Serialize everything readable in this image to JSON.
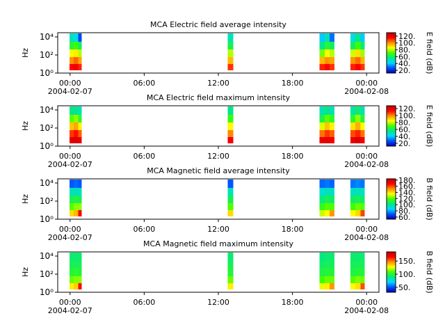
{
  "chart_data": [
    {
      "type": "heatmap",
      "title": "MCA  Electric field average intensity",
      "ylabel": "Hz",
      "yscale": "log",
      "ylim": [
        1,
        29000
      ],
      "yticks": [
        {
          "value": 1,
          "label": "10⁰"
        },
        {
          "value": 100,
          "label": "10²"
        },
        {
          "value": 10000,
          "label": "10⁴"
        }
      ],
      "xlim": [
        -1,
        25
      ],
      "xticks": [
        {
          "value": 0,
          "label": "00:00"
        },
        {
          "value": 6,
          "label": "06:00"
        },
        {
          "value": 12,
          "label": "12:00"
        },
        {
          "value": 18,
          "label": "18:00"
        },
        {
          "value": 24,
          "label": "00:00"
        }
      ],
      "date_labels": [
        "2004-02-07",
        "2004-02-08"
      ],
      "x_edges": [
        -0.05,
        0.3,
        0.65,
        0.95,
        12.75,
        13.2,
        20.2,
        20.6,
        21.0,
        21.4,
        22.7,
        23.1,
        23.5,
        23.85
      ],
      "y_edges": [
        2,
        10,
        60,
        400,
        3000,
        25000
      ],
      "z": [
        [
          115,
          118,
          112,
          null,
          110,
          null,
          112,
          115,
          110,
          null,
          112,
          116,
          110
        ],
        [
          100,
          105,
          98,
          null,
          95,
          null,
          95,
          100,
          98,
          null,
          100,
          104,
          96
        ],
        [
          85,
          88,
          80,
          null,
          80,
          null,
          75,
          85,
          80,
          null,
          82,
          90,
          78
        ],
        [
          65,
          70,
          60,
          null,
          62,
          null,
          55,
          65,
          60,
          null,
          60,
          70,
          58
        ],
        [
          50,
          45,
          25,
          null,
          50,
          null,
          40,
          50,
          30,
          null,
          45,
          55,
          40
        ]
      ],
      "colormap": [
        "#0000b0",
        "#0050ff",
        "#00d8ff",
        "#00e888",
        "#40ff00",
        "#ffff00",
        "#ff9000",
        "#ff0000",
        "#c00000"
      ],
      "colorbar": {
        "label": "E field (dB)",
        "lim": [
          12,
          130
        ],
        "ticks": [
          {
            "value": 20,
            "label": "20."
          },
          {
            "value": 40,
            "label": "40."
          },
          {
            "value": 60,
            "label": "60."
          },
          {
            "value": 80,
            "label": "80."
          },
          {
            "value": 100,
            "label": "100."
          },
          {
            "value": 120,
            "label": "120."
          }
        ]
      }
    },
    {
      "type": "heatmap",
      "title": "MCA  Electric field maximum intensity",
      "ylabel": "Hz",
      "yscale": "log",
      "ylim": [
        1,
        29000
      ],
      "yticks": [
        {
          "value": 1,
          "label": "10⁰"
        },
        {
          "value": 100,
          "label": "10²"
        },
        {
          "value": 10000,
          "label": "10⁴"
        }
      ],
      "xlim": [
        -1,
        25
      ],
      "xticks": [
        {
          "value": 0,
          "label": "00:00"
        },
        {
          "value": 6,
          "label": "06:00"
        },
        {
          "value": 12,
          "label": "12:00"
        },
        {
          "value": 18,
          "label": "18:00"
        },
        {
          "value": 24,
          "label": "00:00"
        }
      ],
      "date_labels": [
        "2004-02-07",
        "2004-02-08"
      ],
      "x_edges": [
        -0.05,
        0.3,
        0.65,
        0.95,
        12.75,
        13.2,
        20.2,
        20.6,
        21.0,
        21.4,
        22.7,
        23.1,
        23.5,
        23.85
      ],
      "y_edges": [
        2,
        10,
        60,
        400,
        3000,
        25000
      ],
      "z": [
        [
          120,
          122,
          118,
          null,
          115,
          null,
          118,
          120,
          116,
          null,
          118,
          122,
          116
        ],
        [
          108,
          112,
          104,
          null,
          100,
          null,
          102,
          108,
          104,
          null,
          106,
          110,
          102
        ],
        [
          92,
          96,
          86,
          null,
          85,
          null,
          82,
          92,
          86,
          null,
          88,
          95,
          84
        ],
        [
          72,
          76,
          66,
          null,
          68,
          null,
          62,
          72,
          66,
          null,
          66,
          76,
          64
        ],
        [
          55,
          55,
          50,
          null,
          55,
          null,
          50,
          55,
          50,
          null,
          52,
          58,
          50
        ]
      ],
      "colormap": [
        "#0000b0",
        "#0050ff",
        "#00d8ff",
        "#00e888",
        "#40ff00",
        "#ffff00",
        "#ff9000",
        "#ff0000",
        "#c00000"
      ],
      "colorbar": {
        "label": "E field (dB)",
        "lim": [
          12,
          128
        ],
        "ticks": [
          {
            "value": 20,
            "label": "20."
          },
          {
            "value": 40,
            "label": "40."
          },
          {
            "value": 60,
            "label": "60."
          },
          {
            "value": 80,
            "label": "80."
          },
          {
            "value": 100,
            "label": "100."
          },
          {
            "value": 120,
            "label": "120."
          }
        ]
      }
    },
    {
      "type": "heatmap",
      "title": "MCA  Magnetic field average intensity",
      "ylabel": "Hz",
      "yscale": "log",
      "ylim": [
        1,
        29000
      ],
      "yticks": [
        {
          "value": 1,
          "label": "10⁰"
        },
        {
          "value": 100,
          "label": "10²"
        },
        {
          "value": 10000,
          "label": "10⁴"
        }
      ],
      "xlim": [
        -1,
        25
      ],
      "xticks": [
        {
          "value": 0,
          "label": "00:00"
        },
        {
          "value": 6,
          "label": "06:00"
        },
        {
          "value": 12,
          "label": "12:00"
        },
        {
          "value": 18,
          "label": "18:00"
        },
        {
          "value": 24,
          "label": "00:00"
        }
      ],
      "date_labels": [
        "2004-02-07",
        "2004-02-08"
      ],
      "x_edges": [
        -0.05,
        0.3,
        0.65,
        0.95,
        12.75,
        13.2,
        20.2,
        20.6,
        21.0,
        21.4,
        22.7,
        23.1,
        23.5,
        23.85
      ],
      "y_edges": [
        2,
        10,
        60,
        400,
        3000,
        25000
      ],
      "z": [
        [
          140,
          145,
          170,
          null,
          140,
          null,
          130,
          135,
          150,
          null,
          135,
          140,
          160
        ],
        [
          120,
          125,
          125,
          null,
          120,
          null,
          115,
          120,
          120,
          null,
          118,
          122,
          120
        ],
        [
          108,
          110,
          108,
          null,
          108,
          null,
          104,
          108,
          106,
          null,
          106,
          108,
          106
        ],
        [
          95,
          95,
          95,
          null,
          95,
          null,
          92,
          95,
          94,
          null,
          94,
          96,
          94
        ],
        [
          70,
          72,
          70,
          null,
          70,
          null,
          72,
          74,
          72,
          null,
          74,
          76,
          74
        ]
      ],
      "colormap": [
        "#0000b0",
        "#0050ff",
        "#00d8ff",
        "#00e888",
        "#40ff00",
        "#ffff00",
        "#ff9000",
        "#ff0000",
        "#c00000"
      ],
      "colorbar": {
        "label": "B field (dB)",
        "lim": [
          53,
          184
        ],
        "ticks": [
          {
            "value": 60,
            "label": "60."
          },
          {
            "value": 80,
            "label": "80."
          },
          {
            "value": 100,
            "label": "100."
          },
          {
            "value": 120,
            "label": "120."
          },
          {
            "value": 140,
            "label": "140."
          },
          {
            "value": 160,
            "label": "160."
          },
          {
            "value": 180,
            "label": "180."
          }
        ]
      }
    },
    {
      "type": "heatmap",
      "title": "MCA  Magnetic field maximum intensity",
      "ylabel": "Hz",
      "yscale": "log",
      "ylim": [
        1,
        29000
      ],
      "yticks": [
        {
          "value": 1,
          "label": "10⁰"
        },
        {
          "value": 100,
          "label": "10²"
        },
        {
          "value": 10000,
          "label": "10⁴"
        }
      ],
      "xlim": [
        -1,
        25
      ],
      "xticks": [
        {
          "value": 0,
          "label": "00:00"
        },
        {
          "value": 6,
          "label": "06:00"
        },
        {
          "value": 12,
          "label": "12:00"
        },
        {
          "value": 18,
          "label": "18:00"
        },
        {
          "value": 24,
          "label": "00:00"
        }
      ],
      "date_labels": [
        "2004-02-07",
        "2004-02-08"
      ],
      "x_edges": [
        -0.05,
        0.3,
        0.65,
        0.95,
        12.75,
        13.2,
        20.2,
        20.6,
        21.0,
        21.4,
        22.7,
        23.1,
        23.5,
        23.85
      ],
      "y_edges": [
        2,
        10,
        60,
        400,
        3000,
        25000
      ],
      "z": [
        [
          130,
          135,
          165,
          null,
          130,
          null,
          125,
          130,
          145,
          null,
          128,
          132,
          155
        ],
        [
          112,
          115,
          115,
          null,
          112,
          null,
          108,
          112,
          112,
          null,
          110,
          114,
          112
        ],
        [
          100,
          102,
          100,
          null,
          100,
          null,
          98,
          100,
          100,
          null,
          98,
          100,
          100
        ],
        [
          96,
          96,
          96,
          null,
          96,
          null,
          94,
          96,
          95,
          null,
          95,
          96,
          95
        ],
        [
          92,
          92,
          92,
          null,
          92,
          null,
          90,
          92,
          92,
          null,
          92,
          93,
          92
        ]
      ],
      "colormap": [
        "#0000b0",
        "#0050ff",
        "#00d8ff",
        "#00e888",
        "#40ff00",
        "#ffff00",
        "#ff9000",
        "#ff0000",
        "#c00000"
      ],
      "colorbar": {
        "label": "B field (dB)",
        "lim": [
          31,
          185
        ],
        "ticks": [
          {
            "value": 50,
            "label": "50."
          },
          {
            "value": 100,
            "label": "100."
          },
          {
            "value": 150,
            "label": "150."
          }
        ]
      }
    }
  ]
}
